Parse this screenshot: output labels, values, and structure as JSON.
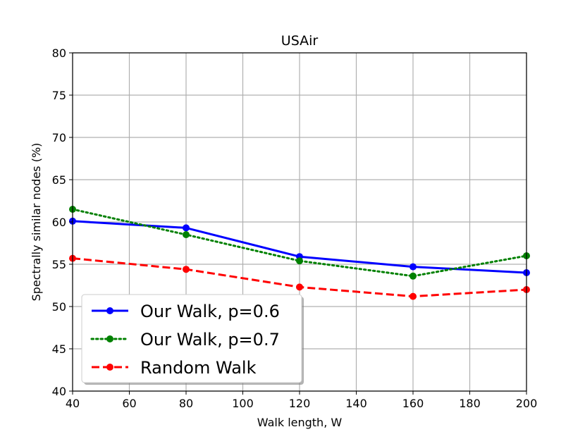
{
  "chart_data": {
    "type": "line",
    "title": "USAir",
    "xlabel": "Walk length, W",
    "ylabel": "Spectrally similar nodes (%)",
    "xlim": [
      40,
      200
    ],
    "ylim": [
      40,
      80
    ],
    "xticks": [
      40,
      60,
      80,
      100,
      120,
      140,
      160,
      180,
      200
    ],
    "yticks": [
      40,
      45,
      50,
      55,
      60,
      65,
      70,
      75,
      80
    ],
    "grid": true,
    "legend_position": "lower-left",
    "x": [
      40,
      80,
      120,
      160,
      200
    ],
    "series": [
      {
        "name": "Our Walk, p=0.6",
        "values": [
          60.1,
          59.3,
          55.9,
          54.7,
          54.0
        ],
        "color": "#0000ff",
        "linestyle": "solid",
        "marker": "circle"
      },
      {
        "name": "Our Walk, p=0.7",
        "values": [
          61.5,
          58.5,
          55.4,
          53.6,
          56.0
        ],
        "color": "#008000",
        "linestyle": "dotted",
        "marker": "circle"
      },
      {
        "name": "Random Walk",
        "values": [
          55.7,
          54.4,
          52.3,
          51.2,
          52.0
        ],
        "color": "#ff0000",
        "linestyle": "dashed",
        "marker": "circle"
      }
    ]
  }
}
